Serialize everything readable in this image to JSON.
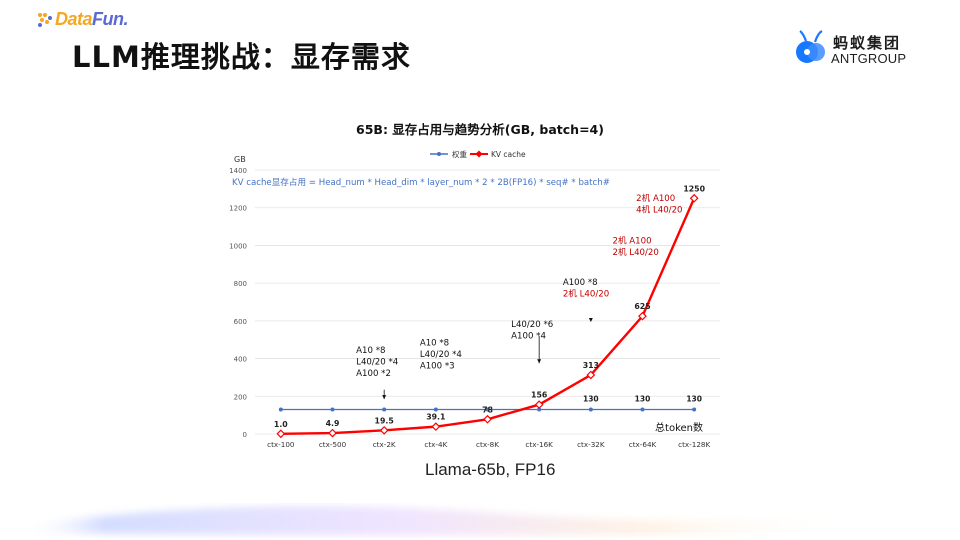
{
  "brand": {
    "left_logo_text_a": "Data",
    "left_logo_text_b": "Fun.",
    "right_logo_cn": "蚂蚁集团",
    "right_logo_en": "ANTGROUP"
  },
  "slide": {
    "title": "LLM推理挑战：显存需求",
    "caption": "Llama-65b, FP16"
  },
  "colors": {
    "weights": "#4472c4",
    "kv": "#ff0000",
    "annotation_red": "#c00000",
    "formula": "#4472c4"
  },
  "chart_data": {
    "type": "line",
    "title": "65B: 显存占用与趋势分析(GB, batch=4)",
    "ylabel": "GB",
    "xlabel": "总token数",
    "ylim": [
      0,
      1400
    ],
    "yticks": [
      0,
      200,
      400,
      600,
      800,
      1000,
      1200,
      1400
    ],
    "categories": [
      "ctx-100",
      "ctx-500",
      "ctx-2K",
      "ctx-4K",
      "ctx-8K",
      "ctx-16K",
      "ctx-32K",
      "ctx-64K",
      "ctx-128K"
    ],
    "legend_position": "top",
    "grid": true,
    "formula": "KV cache显存占用 = Head_num * Head_dim * layer_num * 2 * 2B(FP16) * seq# * batch#",
    "series": [
      {
        "name": "权重",
        "color": "#4472c4",
        "values": [
          130,
          130,
          130,
          130,
          130,
          130,
          130,
          130,
          130
        ],
        "labels": [
          "",
          "",
          "",
          "",
          "",
          "",
          "130",
          "130",
          "130"
        ]
      },
      {
        "name": "KV cache",
        "color": "#ff0000",
        "values": [
          1.0,
          4.9,
          19.5,
          39.1,
          78,
          156,
          313,
          625,
          1250
        ],
        "labels": [
          "1.0",
          "4.9",
          "19.5",
          "39.1",
          "78",
          "156",
          "313",
          "625",
          "1250"
        ]
      }
    ],
    "annotations": [
      {
        "lines": [
          "A10 *8",
          "L40/20 *4",
          "A100 *2"
        ],
        "color": "black"
      },
      {
        "lines": [
          "A10 *8",
          "L40/20 *4",
          "A100 *3"
        ],
        "color": "black"
      },
      {
        "lines": [
          "L40/20 *6",
          "A100 *4"
        ],
        "color": "black"
      },
      {
        "lines": [
          "A100 *8",
          "2机 L40/20"
        ],
        "color": "mixed"
      },
      {
        "lines": [
          "2机 A100",
          "2机 L40/20"
        ],
        "color": "red"
      },
      {
        "lines": [
          "2机 A100",
          "4机 L40/20"
        ],
        "color": "red"
      }
    ]
  }
}
